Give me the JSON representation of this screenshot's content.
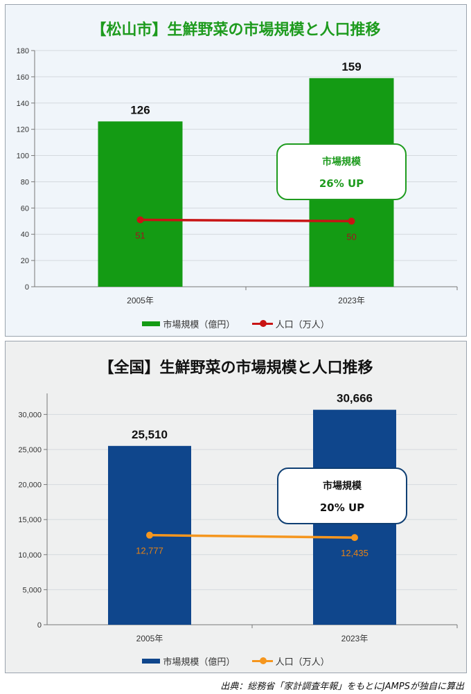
{
  "source": "出典：総務省「家計調査年報」をもとにJAMPSが独自に算出",
  "panels": [
    {
      "title": "【松山市】生鮮野菜の市場規模と人口推移",
      "callout": {
        "line1": "市場規模",
        "line2": "26% UP"
      },
      "colors": {
        "bar": "#149b14",
        "line": "#c81414",
        "lineLabel": "#a0141e",
        "barLabel": "#111111"
      }
    },
    {
      "title": "【全国】生鮮野菜の市場規模と人口推移",
      "callout": {
        "line1": "市場規模",
        "line2": "20% UP"
      },
      "colors": {
        "bar": "#0f468c",
        "line": "#f5961e",
        "lineLabel": "#e68214",
        "barLabel": "#111111"
      }
    }
  ],
  "chart_data": [
    {
      "type": "bar",
      "categories": [
        "2005年",
        "2023年"
      ],
      "series": [
        {
          "name": "市場規模（億円）",
          "type": "bar",
          "values": [
            126,
            159
          ],
          "labels": [
            "126",
            "159"
          ]
        },
        {
          "name": "人口（万人）",
          "type": "line",
          "values": [
            51,
            50
          ],
          "labels": [
            "51",
            "50"
          ]
        }
      ],
      "ylim": [
        0,
        180
      ],
      "yticks": [
        0,
        20,
        40,
        60,
        80,
        100,
        120,
        140,
        160,
        180
      ],
      "ytick_labels": [
        "0",
        "20",
        "40",
        "60",
        "80",
        "100",
        "120",
        "140",
        "160",
        "180"
      ],
      "grid": true,
      "legend": "bottom"
    },
    {
      "type": "bar",
      "categories": [
        "2005年",
        "2023年"
      ],
      "series": [
        {
          "name": "市場規模（億円）",
          "type": "bar",
          "values": [
            25510,
            30666
          ],
          "labels": [
            "25,510",
            "30,666"
          ]
        },
        {
          "name": "人口（万人）",
          "type": "line",
          "values": [
            12777,
            12435
          ],
          "labels": [
            "12,777",
            "12,435"
          ]
        }
      ],
      "ylim": [
        0,
        33000
      ],
      "yticks": [
        0,
        5000,
        10000,
        15000,
        20000,
        25000,
        30000
      ],
      "ytick_labels": [
        "0",
        "5,000",
        "10,000",
        "15,000",
        "20,000",
        "25,000",
        "30,000"
      ],
      "grid": true,
      "legend": "bottom"
    }
  ]
}
